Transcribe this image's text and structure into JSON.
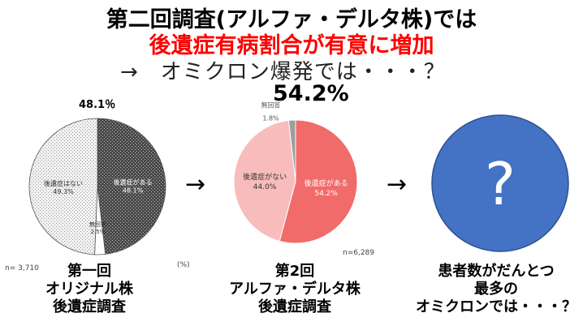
{
  "titles": {
    "line1": "第二回調査(アルファ・デルタ株)では",
    "line2": "後遺症有病割合が有意に増加",
    "line3": "→　オミクロン爆発では・・・？",
    "highlight_pct": "54.2%"
  },
  "arrows": {
    "symbol": "→"
  },
  "chart_data": [
    {
      "type": "pie",
      "title": "第一回 オリジナル株 後遺症調査",
      "categories": [
        "後遺症がある",
        "後遺症はない",
        "無回答"
      ],
      "values": [
        48.1,
        49.3,
        2.5
      ],
      "slice_labels": [
        "後遺症がある\n48.1%",
        "後遺症はない\n49.3%",
        "無回答\n2.5%"
      ],
      "outside_label": "48.1％",
      "n_label": "n= 3,710",
      "unit_label": "(%)",
      "caption": [
        "第一回",
        "オリジナル株",
        "後遺症調査"
      ]
    },
    {
      "type": "pie",
      "title": "第2回 アルファ・デルタ株 後遺症調査",
      "categories": [
        "後遺症がある",
        "後遺症がない",
        "無回答"
      ],
      "values": [
        54.2,
        44.0,
        1.8
      ],
      "slice_labels": [
        "後遺症がある\n54.2%",
        "後遺症がない\n44.0%",
        "無回答\n1.8%"
      ],
      "n_label": "n=6,289",
      "caption": [
        "第2回",
        "アルファ・デルタ株",
        "後遺症調査"
      ]
    },
    {
      "type": "pie",
      "title": "患者数がだんとつ最多のオミクロンでは・・・？",
      "categories": [
        "？"
      ],
      "values": [
        100
      ],
      "center_text": "?",
      "caption": [
        "患者数がだんとつ",
        "最多の",
        "オミクロンでは・・・？"
      ]
    }
  ],
  "colors": {
    "title_red": "#ff0000",
    "pie2_yes": "#f26b6b",
    "pie2_no": "#f8bcbc",
    "pie2_na": "#9e9e9e",
    "pie3_fill": "#4472c4",
    "pie1_yes": "#5a5a5a",
    "pie1_no": "#e8e8e8",
    "pie1_na": "#ffffff"
  }
}
